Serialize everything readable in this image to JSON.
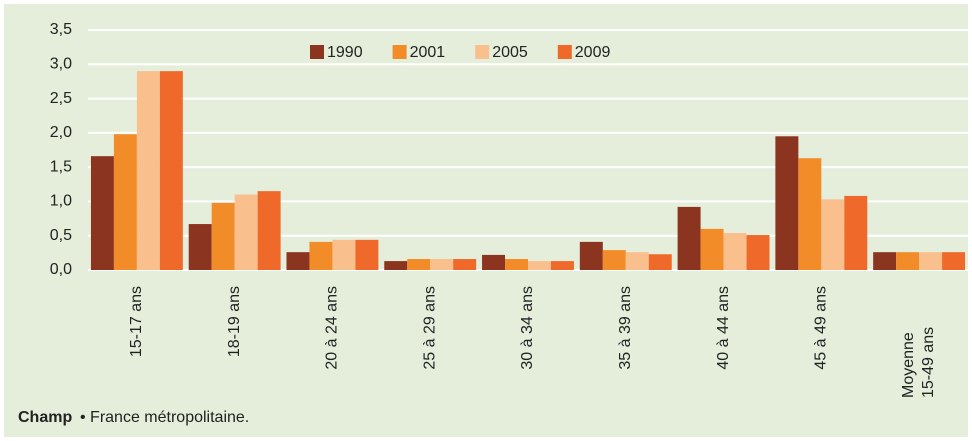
{
  "chart_data": {
    "type": "bar",
    "categories": [
      "15-17 ans",
      "18-19 ans",
      "20 à 24 ans",
      "25 à 29 ans",
      "30 à 34 ans",
      "35 à 39 ans",
      "40 à 44 ans",
      "45 à 49 ans",
      "Moyenne 15-49 ans"
    ],
    "series": [
      {
        "name": "1990",
        "color": "#8b3520",
        "values": [
          1.66,
          0.67,
          0.26,
          0.13,
          0.22,
          0.41,
          0.92,
          1.95,
          0.26
        ]
      },
      {
        "name": "2001",
        "color": "#f28c28",
        "values": [
          1.98,
          0.98,
          0.41,
          0.16,
          0.16,
          0.29,
          0.6,
          1.63,
          0.26
        ]
      },
      {
        "name": "2005",
        "color": "#f9c08e",
        "values": [
          2.9,
          1.1,
          0.44,
          0.16,
          0.13,
          0.26,
          0.54,
          1.03,
          0.26
        ]
      },
      {
        "name": "2009",
        "color": "#ef6a2a",
        "values": [
          2.9,
          1.15,
          0.44,
          0.16,
          0.13,
          0.23,
          0.51,
          1.08,
          0.26
        ]
      }
    ],
    "ylim": [
      0,
      3.5
    ],
    "yticks": [
      {
        "value": 0,
        "label": "0,0"
      },
      {
        "value": 0.5,
        "label": "0,5"
      },
      {
        "value": 1,
        "label": "1,0"
      },
      {
        "value": 1.5,
        "label": "1,5"
      },
      {
        "value": 2,
        "label": "2,0"
      },
      {
        "value": 2.5,
        "label": "2,5"
      },
      {
        "value": 3,
        "label": "3,0"
      },
      {
        "value": 3.5,
        "label": "3,5"
      }
    ],
    "grid": true,
    "legend": "top",
    "footer": {
      "label": "Champ",
      "text": "• France métropolitaine."
    }
  }
}
